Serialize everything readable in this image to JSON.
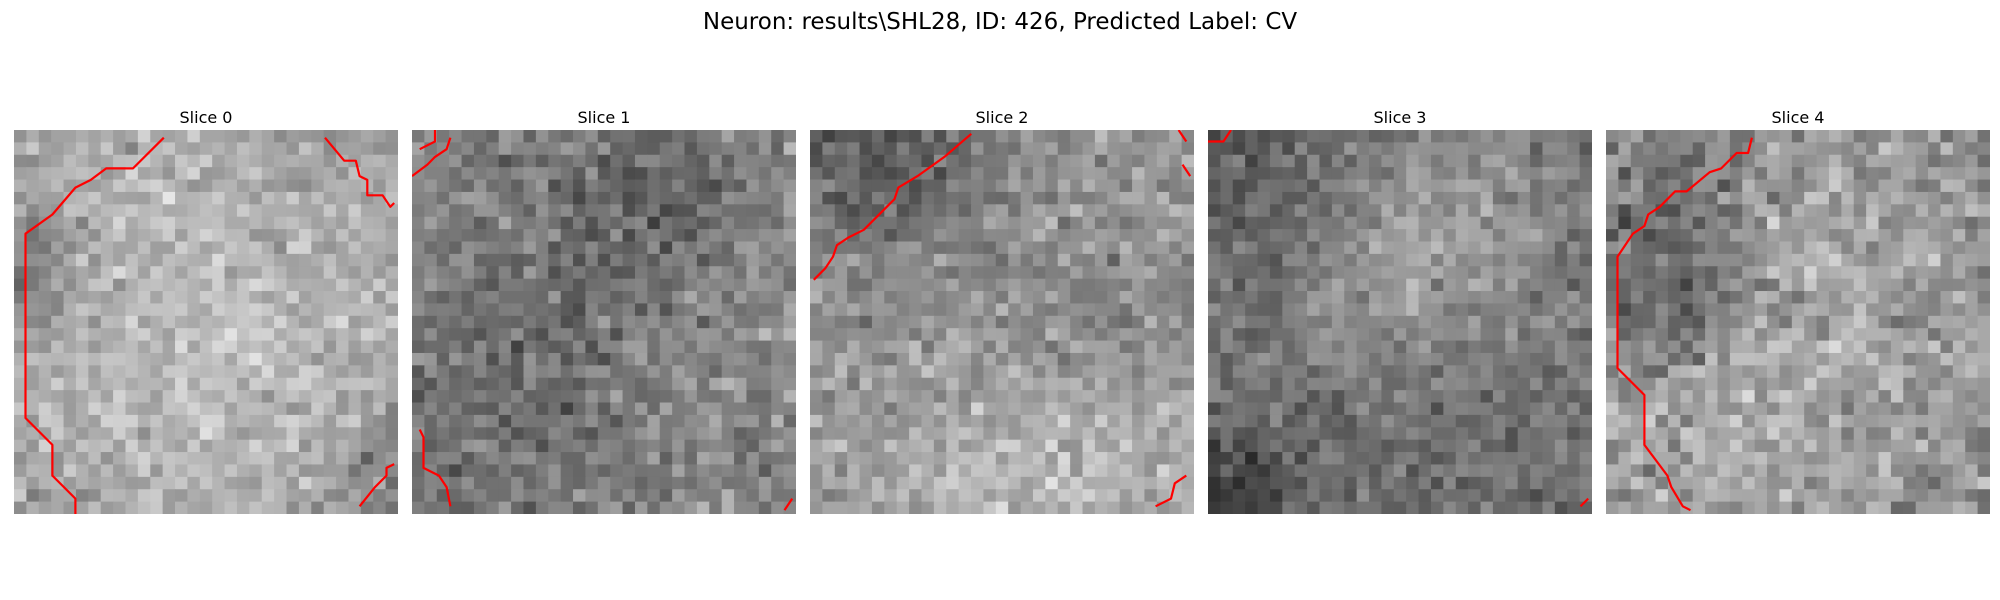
{
  "figure": {
    "title": "Neuron: results\\SHL28, ID: 426, Predicted Label: CV"
  },
  "colors": {
    "contour": "#ff0000",
    "background": "#ffffff"
  },
  "panels": [
    {
      "title": "Slice 0",
      "seed": 11,
      "base": 160,
      "noise": 34,
      "blobs": [
        [
          0.55,
          0.45,
          0.45,
          28
        ],
        [
          0.0,
          0.35,
          0.12,
          -55
        ],
        [
          0.97,
          0.9,
          0.1,
          -45
        ],
        [
          0.85,
          0.05,
          0.18,
          -18
        ]
      ],
      "contours": [
        [
          [
            0.39,
            0.02
          ],
          [
            0.31,
            0.1
          ],
          [
            0.24,
            0.1
          ],
          [
            0.2,
            0.13
          ],
          [
            0.16,
            0.15
          ],
          [
            0.1,
            0.22
          ],
          [
            0.03,
            0.27
          ],
          [
            0.03,
            0.75
          ],
          [
            0.1,
            0.82
          ],
          [
            0.1,
            0.9
          ],
          [
            0.16,
            0.96
          ],
          [
            0.16,
            1.0
          ]
        ],
        [
          [
            0.81,
            0.02
          ],
          [
            0.86,
            0.08
          ],
          [
            0.89,
            0.08
          ],
          [
            0.9,
            0.12
          ],
          [
            0.92,
            0.13
          ],
          [
            0.92,
            0.17
          ],
          [
            0.96,
            0.17
          ],
          [
            0.98,
            0.2
          ],
          [
            0.99,
            0.19
          ]
        ],
        [
          [
            0.9,
            0.98
          ],
          [
            0.94,
            0.93
          ],
          [
            0.97,
            0.9
          ],
          [
            0.97,
            0.88
          ],
          [
            0.99,
            0.87
          ]
        ]
      ]
    },
    {
      "title": "Slice 1",
      "seed": 23,
      "base": 135,
      "noise": 38,
      "blobs": [
        [
          0.42,
          0.55,
          0.3,
          -22
        ],
        [
          0.72,
          0.55,
          0.2,
          18
        ],
        [
          0.65,
          0.2,
          0.16,
          -30
        ],
        [
          0.1,
          0.7,
          0.2,
          -15
        ]
      ],
      "contours": [
        [
          [
            0.02,
            0.05
          ],
          [
            0.06,
            0.03
          ],
          [
            0.06,
            0.0
          ]
        ],
        [
          [
            0.0,
            0.12
          ],
          [
            0.04,
            0.09
          ],
          [
            0.06,
            0.07
          ],
          [
            0.09,
            0.05
          ],
          [
            0.1,
            0.02
          ]
        ],
        [
          [
            0.02,
            0.78
          ],
          [
            0.03,
            0.8
          ],
          [
            0.03,
            0.88
          ],
          [
            0.07,
            0.9
          ],
          [
            0.09,
            0.93
          ],
          [
            0.1,
            0.98
          ]
        ],
        [
          [
            0.97,
            0.99
          ],
          [
            0.99,
            0.96
          ]
        ]
      ]
    },
    {
      "title": "Slice 2",
      "seed": 37,
      "base": 150,
      "noise": 36,
      "blobs": [
        [
          0.2,
          0.06,
          0.18,
          -65
        ],
        [
          0.5,
          0.95,
          0.2,
          45
        ],
        [
          0.98,
          0.8,
          0.15,
          30
        ],
        [
          0.75,
          0.5,
          0.2,
          -12
        ]
      ],
      "contours": [
        [
          [
            0.01,
            0.39
          ],
          [
            0.04,
            0.36
          ],
          [
            0.06,
            0.33
          ],
          [
            0.07,
            0.3
          ],
          [
            0.1,
            0.28
          ],
          [
            0.14,
            0.26
          ],
          [
            0.2,
            0.2
          ],
          [
            0.22,
            0.18
          ],
          [
            0.23,
            0.15
          ],
          [
            0.28,
            0.12
          ],
          [
            0.35,
            0.07
          ],
          [
            0.42,
            0.01
          ]
        ],
        [
          [
            0.96,
            0.0
          ],
          [
            0.98,
            0.03
          ]
        ],
        [
          [
            0.97,
            0.09
          ],
          [
            0.99,
            0.12
          ]
        ],
        [
          [
            0.9,
            0.98
          ],
          [
            0.94,
            0.96
          ],
          [
            0.95,
            0.92
          ],
          [
            0.98,
            0.9
          ]
        ]
      ]
    },
    {
      "title": "Slice 3",
      "seed": 53,
      "base": 115,
      "noise": 32,
      "blobs": [
        [
          0.45,
          0.3,
          0.22,
          35
        ],
        [
          0.75,
          0.25,
          0.18,
          25
        ],
        [
          0.05,
          0.95,
          0.12,
          -60
        ],
        [
          0.15,
          0.15,
          0.18,
          -30
        ]
      ],
      "contours": [
        [
          [
            0.0,
            0.03
          ],
          [
            0.04,
            0.03
          ],
          [
            0.06,
            0.0
          ]
        ],
        [
          [
            0.97,
            0.98
          ],
          [
            0.99,
            0.96
          ]
        ]
      ]
    },
    {
      "title": "Slice 4",
      "seed": 71,
      "base": 150,
      "noise": 42,
      "blobs": [
        [
          0.16,
          0.38,
          0.16,
          -55
        ],
        [
          0.5,
          0.4,
          0.22,
          22
        ],
        [
          0.3,
          0.8,
          0.18,
          20
        ],
        [
          0.2,
          0.1,
          0.12,
          -30
        ]
      ],
      "contours": [
        [
          [
            0.38,
            0.02
          ],
          [
            0.37,
            0.06
          ],
          [
            0.34,
            0.06
          ],
          [
            0.3,
            0.1
          ],
          [
            0.27,
            0.11
          ],
          [
            0.21,
            0.16
          ],
          [
            0.18,
            0.16
          ],
          [
            0.14,
            0.2
          ],
          [
            0.11,
            0.22
          ],
          [
            0.1,
            0.25
          ],
          [
            0.07,
            0.27
          ],
          [
            0.03,
            0.33
          ],
          [
            0.03,
            0.62
          ],
          [
            0.1,
            0.69
          ],
          [
            0.1,
            0.82
          ],
          [
            0.16,
            0.9
          ],
          [
            0.17,
            0.93
          ],
          [
            0.2,
            0.98
          ],
          [
            0.22,
            0.99
          ]
        ]
      ]
    }
  ]
}
